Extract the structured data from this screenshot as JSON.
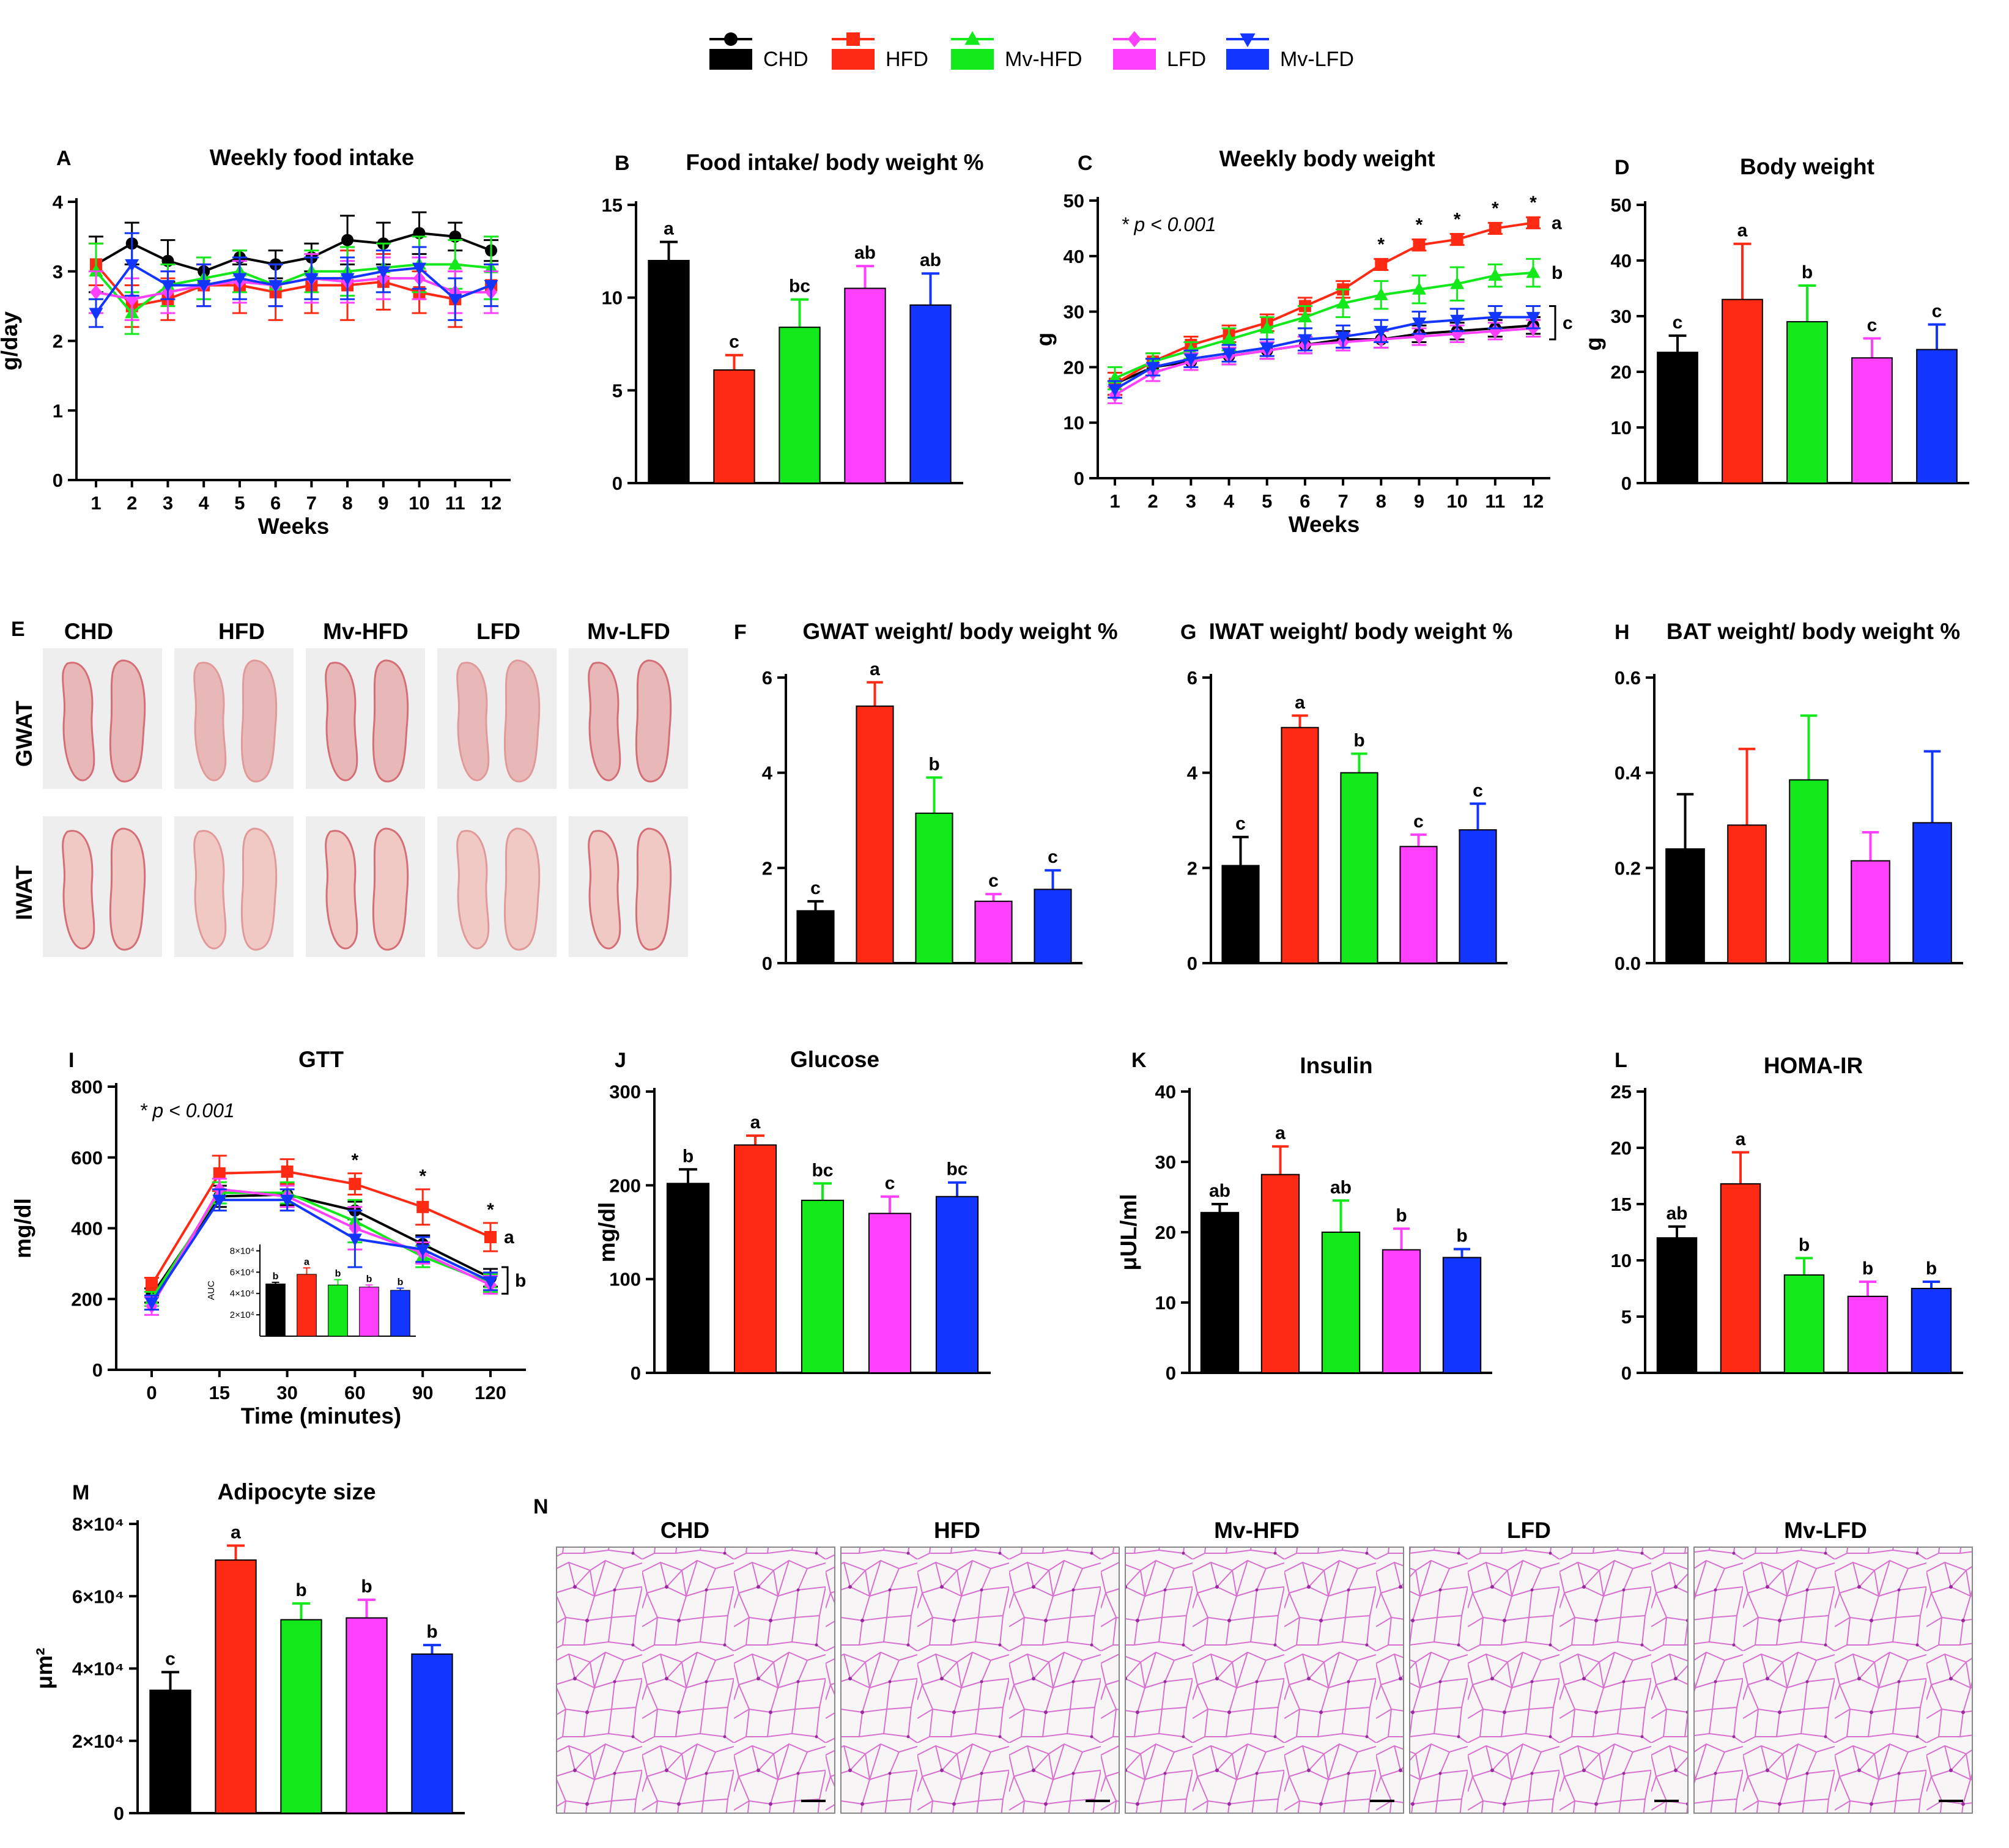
{
  "legend": {
    "items": [
      {
        "name": "CHD",
        "color": "#000000",
        "marker": "circle"
      },
      {
        "name": "HFD",
        "color": "#ff2a14",
        "marker": "square"
      },
      {
        "name": "Mv-HFD",
        "color": "#12e81a",
        "marker": "triangle-up"
      },
      {
        "name": "LFD",
        "color": "#ff40ff",
        "marker": "diamond"
      },
      {
        "name": "Mv-LFD",
        "color": "#1236ff",
        "marker": "triangle-down"
      }
    ]
  },
  "chart_data": [
    {
      "id": "A",
      "letter": "A",
      "type": "line",
      "title": "Weekly food intake",
      "xlabel": "Weeks",
      "ylabel": "g/day",
      "ylim": [
        0,
        4
      ],
      "yticks": [
        0,
        1,
        2,
        3,
        4
      ],
      "x": [
        1,
        2,
        3,
        4,
        5,
        6,
        7,
        8,
        9,
        10,
        11,
        12
      ],
      "series": [
        {
          "name": "CHD",
          "values": [
            3.1,
            3.4,
            3.15,
            3.0,
            3.2,
            3.1,
            3.2,
            3.45,
            3.4,
            3.55,
            3.5,
            3.3
          ],
          "err": [
            0.4,
            0.3,
            0.3,
            0.2,
            0.1,
            0.2,
            0.2,
            0.35,
            0.3,
            0.3,
            0.2,
            0.15
          ]
        },
        {
          "name": "HFD",
          "values": [
            3.1,
            2.5,
            2.6,
            2.8,
            2.8,
            2.7,
            2.8,
            2.8,
            2.85,
            2.7,
            2.6,
            2.8
          ],
          "err": [
            0.3,
            0.3,
            0.3,
            0.3,
            0.4,
            0.4,
            0.4,
            0.5,
            0.4,
            0.3,
            0.4,
            0.3
          ]
        },
        {
          "name": "Mv-HFD",
          "values": [
            3.0,
            2.4,
            2.8,
            2.9,
            3.0,
            2.8,
            3.0,
            3.0,
            3.05,
            3.1,
            3.1,
            3.05
          ],
          "err": [
            0.4,
            0.3,
            0.3,
            0.3,
            0.3,
            0.3,
            0.3,
            0.35,
            0.35,
            0.4,
            0.35,
            0.45
          ]
        },
        {
          "name": "LFD",
          "values": [
            2.7,
            2.6,
            2.7,
            2.8,
            2.85,
            2.8,
            2.9,
            2.85,
            2.9,
            2.9,
            2.7,
            2.7
          ],
          "err": [
            0.3,
            0.3,
            0.3,
            0.3,
            0.3,
            0.3,
            0.35,
            0.3,
            0.3,
            0.3,
            0.3,
            0.3
          ]
        },
        {
          "name": "Mv-LFD",
          "values": [
            2.4,
            3.1,
            2.8,
            2.8,
            2.9,
            2.8,
            2.9,
            2.9,
            3.0,
            3.05,
            2.6,
            2.8
          ],
          "err": [
            0.2,
            0.45,
            0.2,
            0.3,
            0.3,
            0.3,
            0.3,
            0.3,
            0.3,
            0.3,
            0.3,
            0.3
          ]
        }
      ]
    },
    {
      "id": "B",
      "letter": "B",
      "type": "bar",
      "title": "Food intake/ body weight %",
      "ylim": [
        0,
        15
      ],
      "yticks": [
        0,
        5,
        10,
        15
      ],
      "categories": [
        "CHD",
        "HFD",
        "Mv-HFD",
        "LFD",
        "Mv-LFD"
      ],
      "values": [
        12.0,
        6.1,
        8.4,
        10.5,
        9.6
      ],
      "err": [
        1.0,
        0.8,
        1.5,
        1.2,
        1.7
      ],
      "labels": [
        "a",
        "c",
        "bc",
        "ab",
        "ab"
      ]
    },
    {
      "id": "C",
      "letter": "C",
      "type": "line",
      "title": "Weekly body weight",
      "xlabel": "Weeks",
      "ylabel": "g",
      "ylim": [
        0,
        50
      ],
      "yticks": [
        0,
        10,
        20,
        30,
        40,
        50
      ],
      "note": "* p < 0.001",
      "x": [
        1,
        2,
        3,
        4,
        5,
        6,
        7,
        8,
        9,
        10,
        11,
        12
      ],
      "series": [
        {
          "name": "CHD",
          "values": [
            17,
            20,
            21,
            22,
            23,
            24,
            25,
            25,
            26,
            26.5,
            27,
            27.5
          ],
          "err": [
            2,
            1.5,
            1.5,
            1.5,
            1.5,
            1.5,
            1.5,
            1.5,
            1.5,
            1.5,
            1.5,
            1.5
          ]
        },
        {
          "name": "HFD",
          "values": [
            17,
            21,
            24,
            26,
            28,
            31,
            34,
            38.5,
            42,
            43,
            45,
            46
          ],
          "err": [
            2,
            1.5,
            1.5,
            1.5,
            1.5,
            1.5,
            1.5,
            1.0,
            1.0,
            1.0,
            1.0,
            1.0
          ]
        },
        {
          "name": "Mv-HFD",
          "values": [
            18,
            21,
            23,
            25,
            27,
            29,
            31.5,
            33,
            34,
            35,
            36.5,
            37
          ],
          "err": [
            2,
            1.5,
            1.5,
            2,
            2,
            2,
            2.5,
            2.5,
            2.5,
            3,
            2,
            2.5
          ]
        },
        {
          "name": "LFD",
          "values": [
            15,
            19,
            21,
            22,
            23,
            24,
            24.5,
            25,
            25.5,
            26,
            26.5,
            27
          ],
          "err": [
            1.5,
            1.5,
            1.5,
            1.5,
            1.5,
            1.5,
            1.5,
            1.5,
            1.5,
            1.5,
            1.5,
            1.5
          ]
        },
        {
          "name": "Mv-LFD",
          "values": [
            16,
            20,
            21.5,
            22.5,
            23.5,
            25,
            25.5,
            26.5,
            28,
            28.5,
            29,
            29
          ],
          "err": [
            1.5,
            1.5,
            1.5,
            1.5,
            1.5,
            2,
            2,
            2,
            2,
            2,
            2,
            2
          ]
        }
      ],
      "stars_at_weeks": [
        8,
        9,
        10,
        11,
        12
      ],
      "group_labels": [
        "a",
        "b",
        "c"
      ]
    },
    {
      "id": "D",
      "letter": "D",
      "type": "bar",
      "title": "Body weight",
      "ylabel": "g",
      "ylim": [
        0,
        50
      ],
      "yticks": [
        0,
        10,
        20,
        30,
        40,
        50
      ],
      "categories": [
        "CHD",
        "HFD",
        "Mv-HFD",
        "LFD",
        "Mv-LFD"
      ],
      "values": [
        23.5,
        33.0,
        29.0,
        22.5,
        24.0
      ],
      "err": [
        3.0,
        10.0,
        6.5,
        3.5,
        4.5
      ],
      "labels": [
        "c",
        "a",
        "b",
        "c",
        "c"
      ]
    },
    {
      "id": "F",
      "letter": "F",
      "type": "bar",
      "title": "GWAT weight/ body weight %",
      "ylim": [
        0,
        6
      ],
      "yticks": [
        0,
        2,
        4,
        6
      ],
      "categories": [
        "CHD",
        "HFD",
        "Mv-HFD",
        "LFD",
        "Mv-LFD"
      ],
      "values": [
        1.1,
        5.4,
        3.15,
        1.3,
        1.55
      ],
      "err": [
        0.2,
        0.5,
        0.75,
        0.15,
        0.4
      ],
      "labels": [
        "c",
        "a",
        "b",
        "c",
        "c"
      ]
    },
    {
      "id": "G",
      "letter": "G",
      "type": "bar",
      "title": "IWAT weight/ body weight %",
      "ylim": [
        0,
        6
      ],
      "yticks": [
        0,
        2,
        4,
        6
      ],
      "categories": [
        "CHD",
        "HFD",
        "Mv-HFD",
        "LFD",
        "Mv-LFD"
      ],
      "values": [
        2.05,
        4.95,
        4.0,
        2.45,
        2.8
      ],
      "err": [
        0.6,
        0.25,
        0.4,
        0.25,
        0.55
      ],
      "labels": [
        "c",
        "a",
        "b",
        "c",
        "c"
      ]
    },
    {
      "id": "H",
      "letter": "H",
      "type": "bar",
      "title": "BAT weight/ body weight %",
      "ylim": [
        0,
        0.6
      ],
      "yticks": [
        "0.0",
        "0.2",
        "0.4",
        "0.6"
      ],
      "categories": [
        "CHD",
        "HFD",
        "Mv-HFD",
        "LFD",
        "Mv-LFD"
      ],
      "values": [
        0.24,
        0.29,
        0.385,
        0.215,
        0.295
      ],
      "err": [
        0.115,
        0.16,
        0.135,
        0.06,
        0.15
      ],
      "labels": [
        "",
        "",
        "",
        "",
        ""
      ]
    },
    {
      "id": "I",
      "letter": "I",
      "type": "line",
      "title": "GTT",
      "xlabel": "Time (minutes)",
      "ylabel": "mg/dl",
      "ylim": [
        0,
        800
      ],
      "yticks": [
        0,
        200,
        400,
        600,
        800
      ],
      "x": [
        0,
        15,
        30,
        60,
        90,
        120
      ],
      "note": "* p < 0.001",
      "series": [
        {
          "name": "CHD",
          "values": [
            210,
            490,
            495,
            450,
            355,
            260
          ],
          "err": [
            20,
            30,
            30,
            25,
            25,
            25
          ]
        },
        {
          "name": "HFD",
          "values": [
            240,
            555,
            560,
            525,
            460,
            375
          ],
          "err": [
            20,
            50,
            35,
            30,
            50,
            40
          ]
        },
        {
          "name": "Mv-HFD",
          "values": [
            200,
            500,
            500,
            420,
            320,
            245
          ],
          "err": [
            20,
            30,
            30,
            60,
            30,
            25
          ]
        },
        {
          "name": "LFD",
          "values": [
            180,
            510,
            490,
            400,
            330,
            240
          ],
          "err": [
            25,
            30,
            30,
            60,
            30,
            25
          ]
        },
        {
          "name": "Mv-LFD",
          "values": [
            190,
            480,
            480,
            370,
            340,
            250
          ],
          "err": [
            20,
            30,
            30,
            80,
            35,
            25
          ]
        }
      ],
      "stars_at": [
        60,
        90,
        120
      ],
      "group_labels": [
        "a",
        "b"
      ],
      "inset": {
        "ylabel": "AUC",
        "yticks": [
          "2×10⁴",
          "4×10⁴",
          "6×10⁴",
          "8×10⁴"
        ],
        "values": [
          4.9,
          5.8,
          4.8,
          4.6,
          4.3
        ],
        "err": [
          0.15,
          0.6,
          0.5,
          0.2,
          0.2
        ],
        "labels": [
          "b",
          "a",
          "b",
          "b",
          "b"
        ]
      }
    },
    {
      "id": "J",
      "letter": "J",
      "type": "bar",
      "title": "Glucose",
      "ylabel": "mg/dl",
      "ylim": [
        0,
        300
      ],
      "yticks": [
        0,
        100,
        200,
        300
      ],
      "categories": [
        "CHD",
        "HFD",
        "Mv-HFD",
        "LFD",
        "Mv-LFD"
      ],
      "values": [
        202,
        243,
        184,
        170,
        188
      ],
      "err": [
        15,
        10,
        18,
        18,
        15
      ],
      "labels": [
        "b",
        "a",
        "bc",
        "c",
        "bc"
      ]
    },
    {
      "id": "K",
      "letter": "K",
      "type": "bar",
      "title": "Insulin",
      "ylabel": "μUL/ml",
      "ylim": [
        0,
        40
      ],
      "yticks": [
        0,
        10,
        20,
        30,
        40
      ],
      "categories": [
        "CHD",
        "HFD",
        "Mv-HFD",
        "LFD",
        "Mv-LFD"
      ],
      "values": [
        22.8,
        28.2,
        20.0,
        17.5,
        16.4
      ],
      "err": [
        1.2,
        4.0,
        4.5,
        3.0,
        1.2
      ],
      "labels": [
        "ab",
        "a",
        "ab",
        "b",
        "b"
      ]
    },
    {
      "id": "L",
      "letter": "L",
      "type": "bar",
      "title": "HOMA-IR",
      "ylim": [
        0,
        25
      ],
      "yticks": [
        0,
        5,
        10,
        15,
        20,
        25
      ],
      "categories": [
        "CHD",
        "HFD",
        "Mv-HFD",
        "LFD",
        "Mv-LFD"
      ],
      "values": [
        12.0,
        16.8,
        8.7,
        6.8,
        7.5
      ],
      "err": [
        1.0,
        2.8,
        1.5,
        1.3,
        0.6
      ],
      "labels": [
        "ab",
        "a",
        "b",
        "b",
        "b"
      ]
    },
    {
      "id": "M",
      "letter": "M",
      "type": "bar",
      "title": "Adipocyte size",
      "ylabel": "μm²",
      "ylim": [
        0,
        80000
      ],
      "yticks": [
        "0",
        "2×10⁴",
        "4×10⁴",
        "6×10⁴",
        "8×10⁴"
      ],
      "categories": [
        "CHD",
        "HFD",
        "Mv-HFD",
        "LFD",
        "Mv-LFD"
      ],
      "values": [
        34000,
        70000,
        53500,
        54000,
        44000
      ],
      "err": [
        5000,
        4000,
        4500,
        5000,
        2500
      ],
      "labels": [
        "c",
        "a",
        "b",
        "b",
        "b"
      ]
    }
  ],
  "panelE": {
    "letter": "E",
    "columns": [
      "CHD",
      "HFD",
      "Mv-HFD",
      "LFD",
      "Mv-LFD"
    ],
    "rows": [
      "GWAT",
      "IWAT"
    ]
  },
  "panelN": {
    "letter": "N",
    "columns": [
      "CHD",
      "HFD",
      "Mv-HFD",
      "LFD",
      "Mv-LFD"
    ]
  }
}
